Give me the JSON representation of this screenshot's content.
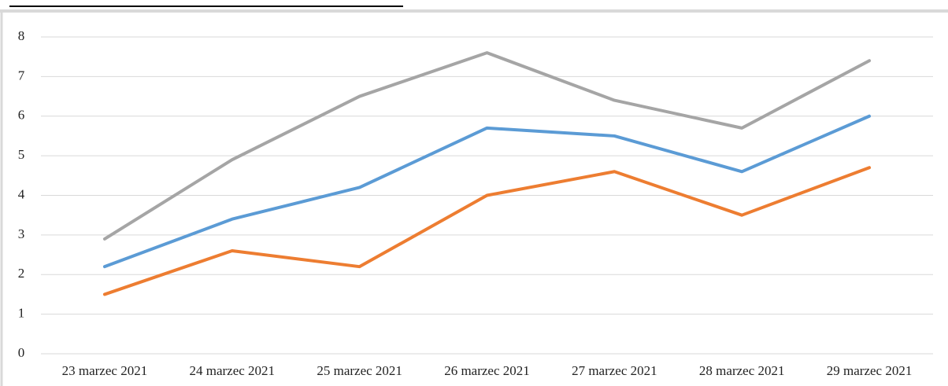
{
  "chart_data": {
    "type": "line",
    "categories": [
      "23 marzec 2021",
      "24 marzec 2021",
      "25 marzec 2021",
      "26 marzec 2021",
      "27 marzec 2021",
      "28 marzec 2021",
      "29 marzec 2021"
    ],
    "series": [
      {
        "color": "#5b9bd5",
        "values": [
          2.2,
          3.4,
          4.2,
          5.7,
          5.5,
          4.6,
          6.0
        ]
      },
      {
        "color": "#ed7d31",
        "values": [
          1.5,
          2.6,
          2.2,
          4.0,
          4.6,
          3.5,
          4.7
        ]
      },
      {
        "color": "#a5a5a5",
        "values": [
          2.9,
          4.9,
          6.5,
          7.6,
          6.4,
          5.7,
          7.4
        ]
      }
    ],
    "ylim": [
      0,
      8
    ],
    "yticks": [
      0,
      1,
      2,
      3,
      4,
      5,
      6,
      7,
      8
    ],
    "grid": true
  }
}
